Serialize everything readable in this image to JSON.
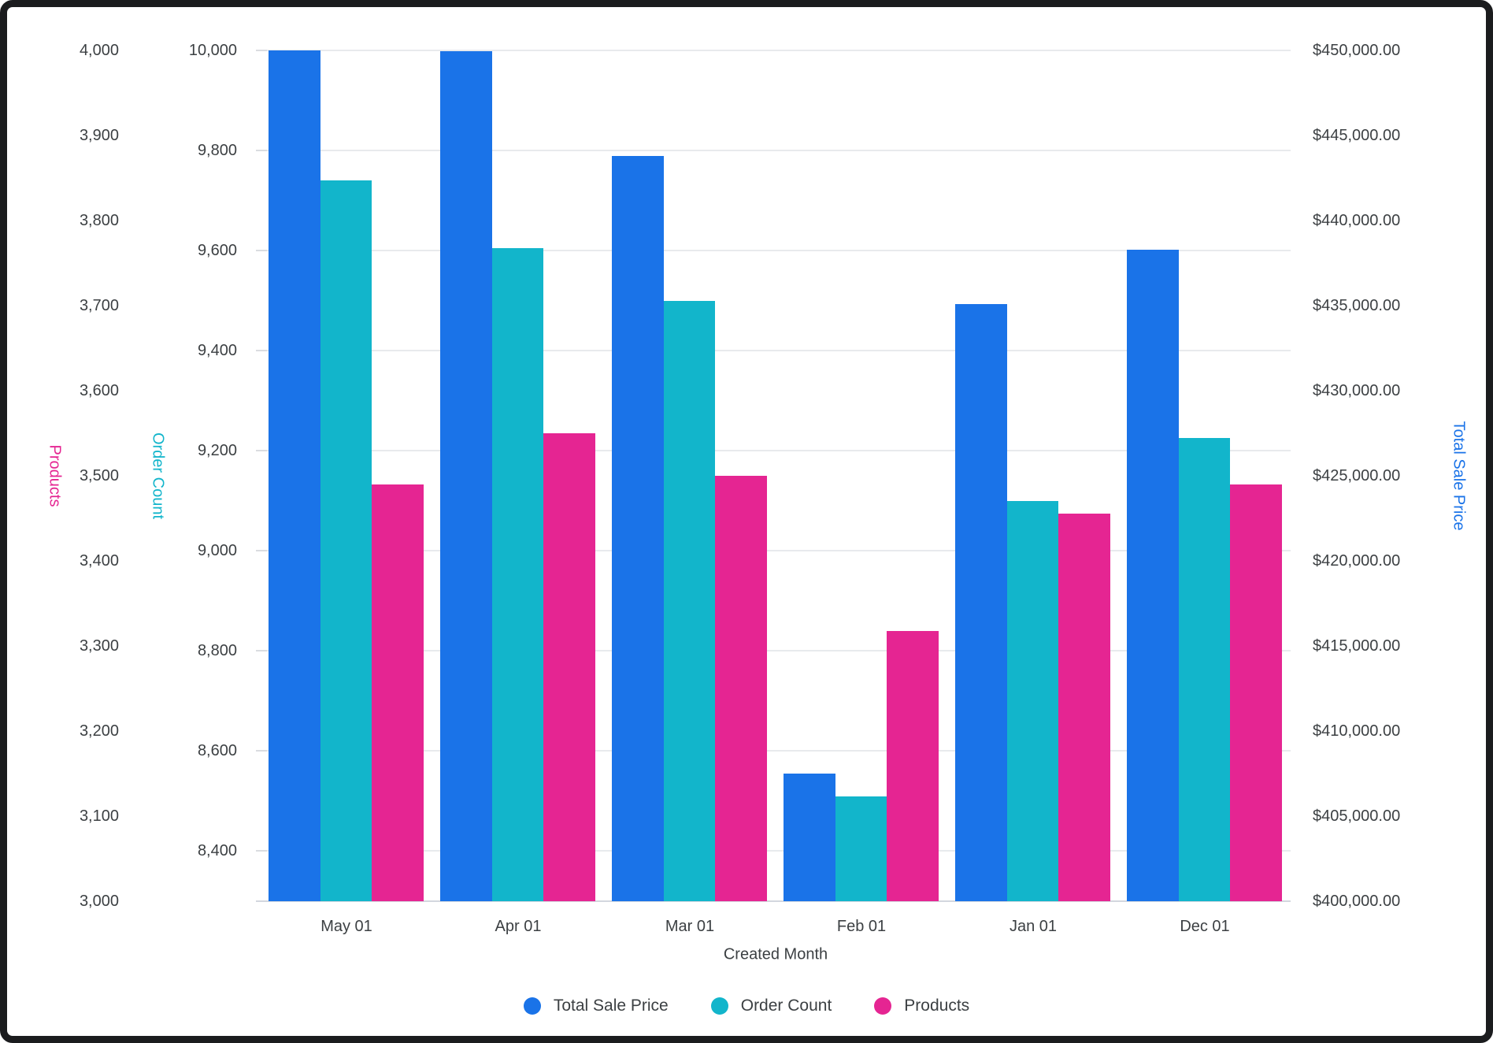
{
  "chart_data": {
    "type": "bar",
    "title": "",
    "categories": [
      "May 01",
      "Apr 01",
      "Mar 01",
      "Feb 01",
      "Jan 01",
      "Dec 01"
    ],
    "xlabel": "Created Month",
    "grid": "horizontal-on-count-axis",
    "legend_position": "bottom",
    "series": [
      {
        "name": "Total Sale Price",
        "color": "#1A73E8",
        "axis": "money",
        "values": [
          450000,
          449950,
          443800,
          407500,
          435100,
          438300
        ]
      },
      {
        "name": "Order Count",
        "color": "#12B5CB",
        "axis": "count",
        "values": [
          9740,
          9605,
          9500,
          8510,
          9100,
          9225
        ]
      },
      {
        "name": "Products",
        "color": "#E52592",
        "axis": "products",
        "values": [
          3490,
          3550,
          3500,
          3318,
          3456,
          3490
        ]
      }
    ],
    "axes": {
      "products": {
        "title": "Products",
        "title_color": "#E52592",
        "position": "outer-left",
        "min": 3000,
        "max": 4000,
        "ticks": [
          {
            "label": "4,000",
            "value": 4000
          },
          {
            "label": "3,900",
            "value": 3900
          },
          {
            "label": "3,800",
            "value": 3800
          },
          {
            "label": "3,700",
            "value": 3700
          },
          {
            "label": "3,600",
            "value": 3600
          },
          {
            "label": "3,500",
            "value": 3500
          },
          {
            "label": "3,400",
            "value": 3400
          },
          {
            "label": "3,300",
            "value": 3300
          },
          {
            "label": "3,200",
            "value": 3200
          },
          {
            "label": "3,100",
            "value": 3100
          },
          {
            "label": "3,000",
            "value": 3000
          }
        ]
      },
      "count": {
        "title": "Order Count",
        "title_color": "#12B5CB",
        "position": "inner-left",
        "min": 8300,
        "max": 10000,
        "ticks": [
          {
            "label": "10,000",
            "value": 10000
          },
          {
            "label": "9,800",
            "value": 9800
          },
          {
            "label": "9,600",
            "value": 9600
          },
          {
            "label": "9,400",
            "value": 9400
          },
          {
            "label": "9,200",
            "value": 9200
          },
          {
            "label": "9,000",
            "value": 9000
          },
          {
            "label": "8,800",
            "value": 8800
          },
          {
            "label": "8,600",
            "value": 8600
          },
          {
            "label": "8,400",
            "value": 8400
          }
        ]
      },
      "money": {
        "title": "Total Sale Price",
        "title_color": "#1A73E8",
        "position": "right",
        "min": 400000,
        "max": 450000,
        "ticks": [
          {
            "label": "$450,000.00",
            "value": 450000
          },
          {
            "label": "$445,000.00",
            "value": 445000
          },
          {
            "label": "$440,000.00",
            "value": 440000
          },
          {
            "label": "$435,000.00",
            "value": 435000
          },
          {
            "label": "$430,000.00",
            "value": 430000
          },
          {
            "label": "$425,000.00",
            "value": 425000
          },
          {
            "label": "$420,000.00",
            "value": 420000
          },
          {
            "label": "$415,000.00",
            "value": 415000
          },
          {
            "label": "$410,000.00",
            "value": 410000
          },
          {
            "label": "$405,000.00",
            "value": 405000
          },
          {
            "label": "$400,000.00",
            "value": 400000
          }
        ]
      }
    },
    "legend": [
      {
        "label": "Total Sale Price",
        "color": "#1A73E8"
      },
      {
        "label": "Order Count",
        "color": "#12B5CB"
      },
      {
        "label": "Products",
        "color": "#E52592"
      }
    ]
  }
}
